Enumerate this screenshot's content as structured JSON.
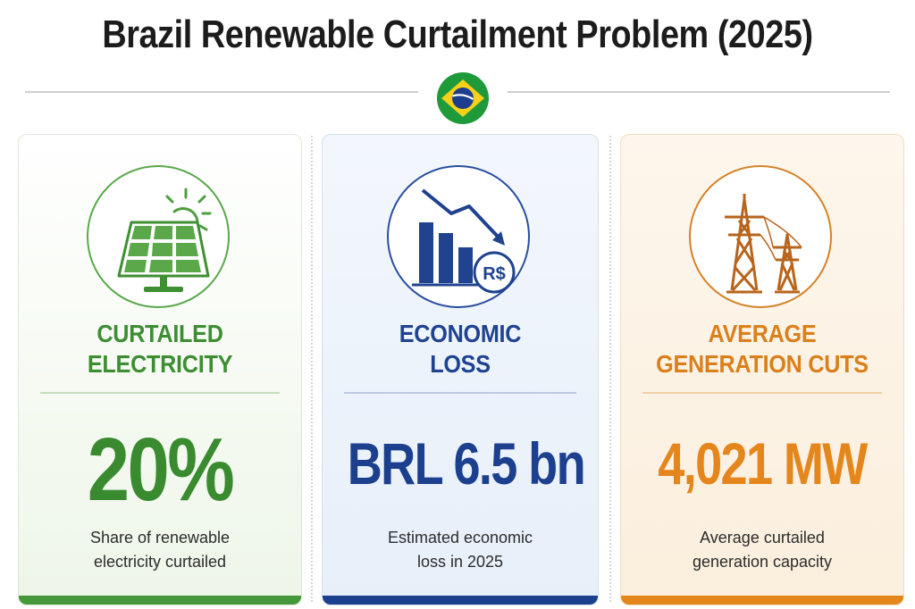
{
  "title": "Brazil Renewable Curtailment Problem (2025)",
  "flag_icon": "brazil-flag-icon",
  "cards": [
    {
      "icon": "solar-panel-icon",
      "heading_line1": "CURTAILED",
      "heading_line2": "ELECTRICITY",
      "value": "20%",
      "desc_line1": "Share of renewable",
      "desc_line2": "electricity curtailed",
      "color": "#3d8e33"
    },
    {
      "icon": "declining-bar-chart-icon",
      "icon_label": "R$",
      "heading_line1": "ECONOMIC",
      "heading_line2": "LOSS",
      "value": "BRL 6.5 bn",
      "desc_line1": "Estimated economic",
      "desc_line2": "loss in 2025",
      "color": "#1c3f8e"
    },
    {
      "icon": "transmission-tower-icon",
      "heading_line1": "AVERAGE",
      "heading_line2": "GENERATION CUTS",
      "value": "4,021 MW",
      "desc_line1": "Average curtailed",
      "desc_line2": "generation capacity",
      "color": "#e5861d"
    }
  ]
}
